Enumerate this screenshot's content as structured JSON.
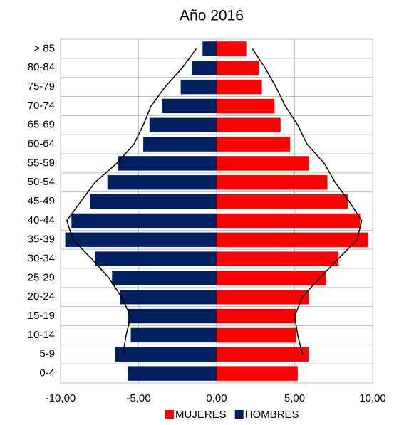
{
  "chart_data": {
    "type": "pyramid",
    "title": "Año 2016",
    "categories": [
      "> 85",
      "80-84",
      "75-79",
      "70-74",
      "65-69",
      "60-64",
      "55-59",
      "50-54",
      "45-49",
      "40-44",
      "35-39",
      "30-34",
      "25-29",
      "20-24",
      "15-19",
      "10-14",
      "5-9",
      "0-4"
    ],
    "series": [
      {
        "name": "MUJERES",
        "color": "#ff0000",
        "values": [
          1.9,
          2.7,
          2.9,
          3.7,
          4.1,
          4.7,
          5.9,
          7.1,
          8.4,
          9.2,
          9.7,
          7.8,
          7.0,
          5.9,
          5.1,
          5.1,
          5.9,
          5.2
        ]
      },
      {
        "name": "HOMBRES",
        "color": "#002060",
        "values": [
          -0.9,
          -1.6,
          -2.3,
          -3.5,
          -4.3,
          -4.7,
          -6.3,
          -7.0,
          -8.1,
          -9.3,
          -9.7,
          -7.8,
          -6.7,
          -6.2,
          -5.7,
          -5.5,
          -6.5,
          -5.7
        ]
      }
    ],
    "lines": [
      {
        "color": "#000000",
        "values": [
          2.3,
          3.1,
          3.8,
          4.4,
          5.2,
          5.8,
          6.9,
          7.6,
          8.5,
          9.3,
          9.0,
          7.8,
          6.6,
          5.5,
          5.0,
          5.2,
          5.5,
          null
        ]
      },
      {
        "color": "#000000",
        "values": [
          -1.3,
          -2.2,
          -3.3,
          -4.2,
          -4.7,
          -5.3,
          -6.4,
          -7.8,
          -8.7,
          -9.6,
          -9.2,
          -8.0,
          -6.9,
          -6.1,
          -5.5,
          -5.8,
          -6.0,
          null
        ]
      }
    ],
    "xlim": [
      -10,
      10
    ],
    "xticks": [
      {
        "value": -10,
        "label": "-10,00"
      },
      {
        "value": -5,
        "label": "-5,00"
      },
      {
        "value": 0,
        "label": "0,00"
      },
      {
        "value": 5,
        "label": "5,00"
      },
      {
        "value": 10,
        "label": "10,00"
      }
    ],
    "grid": true,
    "legend": "bottom"
  }
}
